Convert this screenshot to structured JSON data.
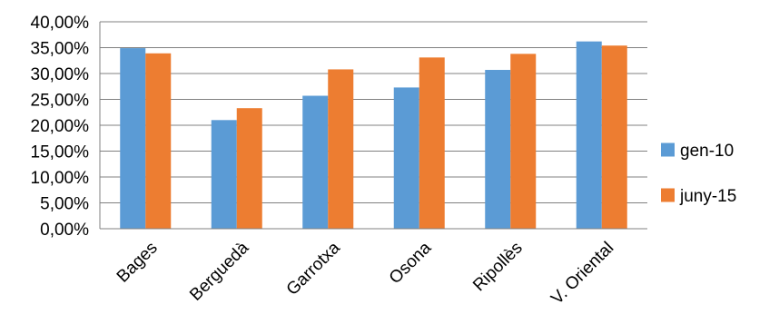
{
  "chart_data": {
    "type": "bar",
    "title": "",
    "xlabel": "",
    "ylabel": "",
    "categories": [
      "Bages",
      "Berguedà",
      "Garrotxa",
      "Osona",
      "Ripollès",
      "V. Oriental"
    ],
    "series": [
      {
        "name": "gen-10",
        "color": "#5B9BD5",
        "values": [
          34.9,
          21.0,
          25.7,
          27.3,
          30.7,
          36.2
        ]
      },
      {
        "name": "juny-15",
        "color": "#ED7D31",
        "values": [
          33.9,
          23.3,
          30.8,
          33.1,
          33.8,
          35.4
        ]
      }
    ],
    "ylim": [
      0,
      40
    ],
    "yticks": [
      {
        "value": 0,
        "label": "0,00%"
      },
      {
        "value": 5,
        "label": "5,00%"
      },
      {
        "value": 10,
        "label": "10,00%"
      },
      {
        "value": 15,
        "label": "15,00%"
      },
      {
        "value": 20,
        "label": "20,00%"
      },
      {
        "value": 25,
        "label": "25,00%"
      },
      {
        "value": 30,
        "label": "30,00%"
      },
      {
        "value": 35,
        "label": "35,00%"
      },
      {
        "value": 40,
        "label": "40,00%"
      }
    ],
    "grid": true,
    "legend": "right",
    "gridline_color": "#808080"
  }
}
